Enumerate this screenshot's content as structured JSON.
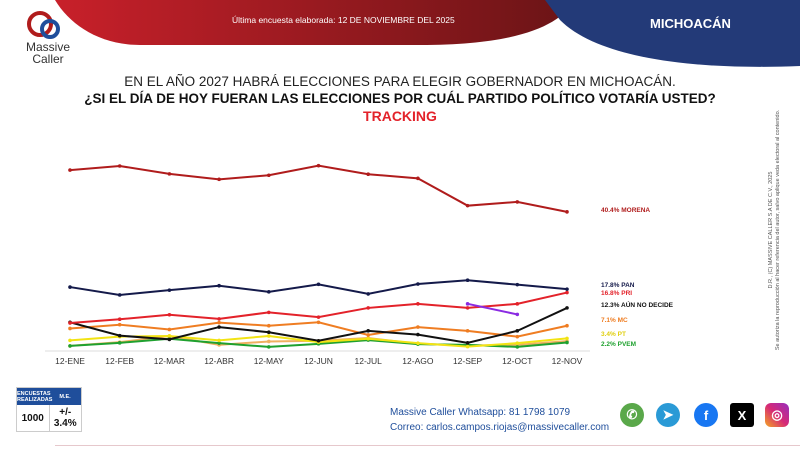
{
  "header": {
    "survey_date": "Última encuesta elaborada: 12 DE NOVIEMBRE DEL 2025",
    "state": "MICHOACÁN",
    "logo": "Massive Caller"
  },
  "titles": {
    "line1": "EN EL AÑO 2027 HABRÁ ELECCIONES PARA ELEGIR GOBERNADOR EN MICHOACÁN.",
    "line2": "¿SI EL DÍA DE HOY FUERAN LAS ELECCIONES POR CUÁL PARTIDO POLÍTICO VOTARÍA USTED?",
    "line3": "TRACKING"
  },
  "side_note": {
    "line1": "D.R., (C) MASSIVE CALLER S.A DE C.V., 2025",
    "line2": "Se autoriza la reproducción al hacer referencia del autor, salvo aplique veda electoral al contenido."
  },
  "stats": {
    "h1": "ENCUESTAS REALIZADAS",
    "h2": "M.E.",
    "v1": "1000",
    "v2": "+/- 3.4%"
  },
  "contact": {
    "whatsapp": "Massive Caller Whatsapp: 81 1798 1079",
    "email": "Correo: carlos.campos.riojas@massivecaller.com"
  },
  "social": [
    "whatsapp-icon",
    "telegram-icon",
    "facebook-icon",
    "x-icon",
    "instagram-icon"
  ],
  "chart_data": {
    "type": "line",
    "title": "TRACKING",
    "xlabel": "",
    "ylabel": "",
    "ylim": [
      0,
      55
    ],
    "grid": false,
    "legend": "right",
    "categories": [
      "12-ENE",
      "12-FEB",
      "12-MAR",
      "12-ABR",
      "12-MAY",
      "12-JUN",
      "12-JUL",
      "12-AGO",
      "12-SEP",
      "12-OCT",
      "12-NOV"
    ],
    "series": [
      {
        "name": "MORENA",
        "label": "40.4% MORENA",
        "color": "#b01c1c",
        "values": [
          52.6,
          53.8,
          51.5,
          49.9,
          51.1,
          53.9,
          51.4,
          50.2,
          42.2,
          43.3,
          40.4
        ]
      },
      {
        "name": "PAN",
        "label": "17.8% PAN",
        "color": "#141a4a",
        "values": [
          18.4,
          16.1,
          17.5,
          18.8,
          17.0,
          19.2,
          16.4,
          19.3,
          20.4,
          19.1,
          17.8
        ]
      },
      {
        "name": "PRI",
        "label": "16.8% PRI",
        "color": "#e3222a",
        "values": [
          7.9,
          9.0,
          10.3,
          9.1,
          11.0,
          9.6,
          12.3,
          13.5,
          12.3,
          13.5,
          16.8
        ]
      },
      {
        "name": "AÚN NO DECIDE",
        "label": "12.3% AÚN NO DECIDE",
        "color": "#111111",
        "values": [
          8.1,
          4.2,
          3.1,
          6.7,
          5.2,
          2.7,
          5.6,
          4.5,
          2.1,
          5.6,
          12.3
        ]
      },
      {
        "name": "MC",
        "label": "7.1% MC",
        "color": "#ef7d22",
        "values": [
          6.3,
          7.4,
          6.0,
          8.0,
          7.1,
          8.1,
          4.4,
          6.7,
          5.6,
          3.9,
          7.1
        ]
      },
      {
        "name": "PT",
        "label": "3.4% PT",
        "color": "#f2e313",
        "values": [
          2.8,
          3.9,
          4.1,
          2.8,
          4.1,
          2.3,
          3.3,
          2.0,
          1.0,
          2.0,
          3.4
        ]
      },
      {
        "name": "PVEM",
        "label": "2.2% PVEM",
        "color": "#1fa12f",
        "values": [
          1.2,
          2.1,
          3.3,
          2.0,
          0.9,
          1.8,
          2.9,
          1.7,
          1.5,
          0.9,
          2.2
        ]
      },
      {
        "color": "#8a2be2",
        "values": [
          null,
          null,
          null,
          null,
          null,
          null,
          null,
          null,
          13.5,
          10.4,
          null
        ]
      },
      {
        "color": "#f0b060",
        "values": [
          1.2,
          2.3,
          4.1,
          1.5,
          2.5,
          2.7,
          3.5,
          1.8,
          1.3,
          1.5,
          2.6
        ]
      }
    ]
  }
}
